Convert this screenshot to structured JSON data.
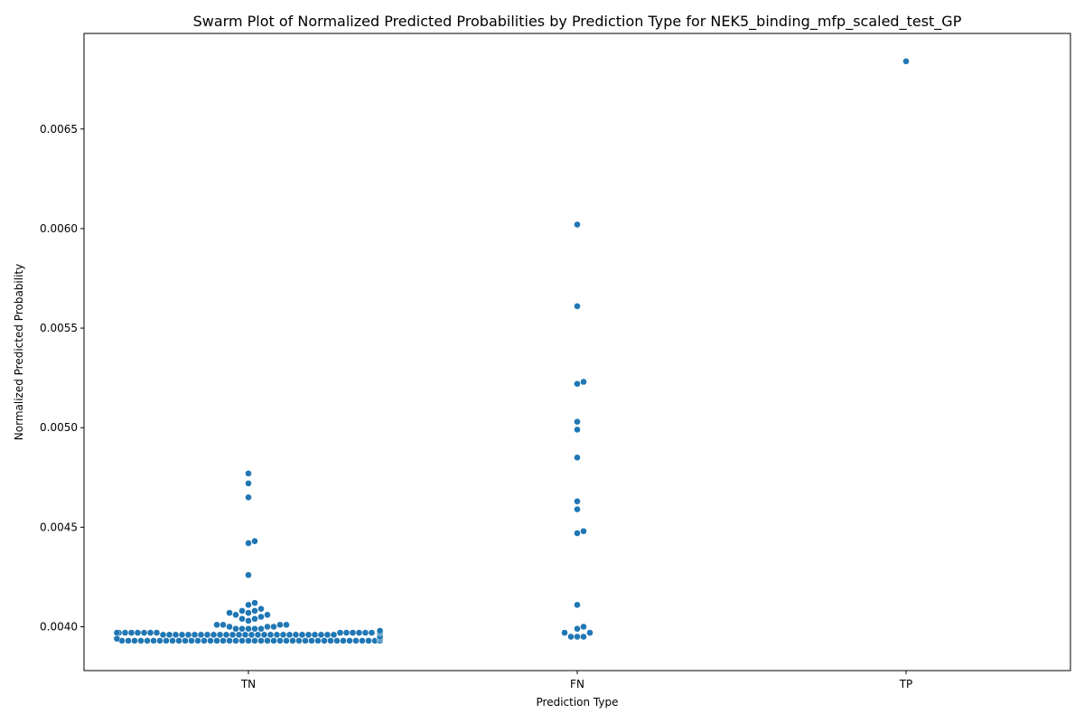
{
  "chart_data": {
    "type": "scatter",
    "subtype": "swarm",
    "title": "Swarm Plot of Normalized Predicted Probabilities by Prediction Type for NEK5_binding_mfp_scaled_test_GP",
    "xlabel": "Prediction Type",
    "ylabel": "Normalized Predicted Probability",
    "categories": [
      "TN",
      "FN",
      "TP"
    ],
    "ylim": [
      0.00378,
      0.00698
    ],
    "yticks": [
      0.004,
      0.0045,
      0.005,
      0.0055,
      0.006,
      0.0065
    ],
    "ytick_labels": [
      "0.0040",
      "0.0045",
      "0.0050",
      "0.0055",
      "0.0060",
      "0.0065"
    ],
    "grid": false,
    "legend": "none",
    "point_color": "#1f77b4",
    "series": [
      {
        "category": "TN",
        "values": [
          0.00477,
          0.00472,
          0.00465,
          0.00443,
          0.00442,
          0.00426,
          0.00412,
          0.00411,
          0.00409,
          0.00408,
          0.00408,
          0.00407,
          0.00407,
          0.00406,
          0.00406,
          0.00405,
          0.00404,
          0.00404,
          0.00403,
          0.00401,
          0.00401,
          0.00401,
          0.00401,
          0.004,
          0.004,
          0.004,
          0.00399,
          0.00399,
          0.00399,
          0.00399,
          0.00399,
          0.00398,
          0.00398,
          0.00398,
          0.00398,
          0.00398,
          0.00398,
          0.00398,
          0.00398,
          0.00398,
          0.00398,
          0.00398,
          0.00398,
          0.00398,
          0.00398,
          0.00398,
          0.00398,
          0.00397,
          0.00397,
          0.00397,
          0.00397,
          0.00397,
          0.00397,
          0.00397,
          0.00397,
          0.00397,
          0.00397,
          0.00397,
          0.00397,
          0.00397,
          0.00397,
          0.00397,
          0.00397,
          0.00397,
          0.00397,
          0.00397,
          0.00397,
          0.00397,
          0.00396,
          0.00396,
          0.00396,
          0.00396,
          0.00396,
          0.00396,
          0.00396,
          0.00396,
          0.00396,
          0.00396,
          0.00396,
          0.00396,
          0.00396,
          0.00396,
          0.00396,
          0.00396,
          0.00396,
          0.00396,
          0.00396,
          0.00396,
          0.00396,
          0.00396,
          0.00396,
          0.00396,
          0.00396,
          0.00396,
          0.00396,
          0.00396,
          0.00395,
          0.00395,
          0.00395,
          0.00395,
          0.00395,
          0.00395,
          0.00395,
          0.00395,
          0.00395,
          0.00395,
          0.00395,
          0.00395,
          0.00395,
          0.00395,
          0.00395,
          0.00395,
          0.00395,
          0.00395,
          0.00395,
          0.00395,
          0.00395,
          0.00395,
          0.00395,
          0.00395,
          0.00395,
          0.00395,
          0.00395,
          0.00395,
          0.00394,
          0.00394,
          0.00394,
          0.00394,
          0.00394,
          0.00394,
          0.00394,
          0.00394,
          0.00394,
          0.00394,
          0.00394,
          0.00394,
          0.00394,
          0.00394,
          0.00394,
          0.00394,
          0.00394,
          0.00394,
          0.00394,
          0.00394,
          0.00394,
          0.00394,
          0.00394,
          0.00394,
          0.00394,
          0.00394,
          0.00394,
          0.00394,
          0.00394,
          0.00394,
          0.00394,
          0.00394,
          0.00394,
          0.00394,
          0.00394,
          0.00393,
          0.00393,
          0.00393,
          0.00393,
          0.00393,
          0.00393,
          0.00393,
          0.00393,
          0.00393,
          0.00393,
          0.00393,
          0.00393,
          0.00393,
          0.00393,
          0.00393,
          0.00393,
          0.00393,
          0.00393,
          0.00393,
          0.00393,
          0.00393,
          0.00393,
          0.00393,
          0.00393,
          0.00393,
          0.00393,
          0.00393,
          0.00393,
          0.00393,
          0.00393,
          0.00393,
          0.00393,
          0.00393,
          0.00393,
          0.00393,
          0.00393,
          0.00393,
          0.00393,
          0.00393,
          0.00393,
          0.00393,
          0.00393
        ]
      },
      {
        "category": "FN",
        "values": [
          0.00602,
          0.00561,
          0.00523,
          0.00522,
          0.00503,
          0.00499,
          0.00485,
          0.00463,
          0.00459,
          0.00448,
          0.00447,
          0.00411,
          0.004,
          0.00399,
          0.00397,
          0.00397,
          0.00395,
          0.00395,
          0.00395
        ]
      },
      {
        "category": "TP",
        "values": [
          0.00684
        ]
      }
    ]
  }
}
